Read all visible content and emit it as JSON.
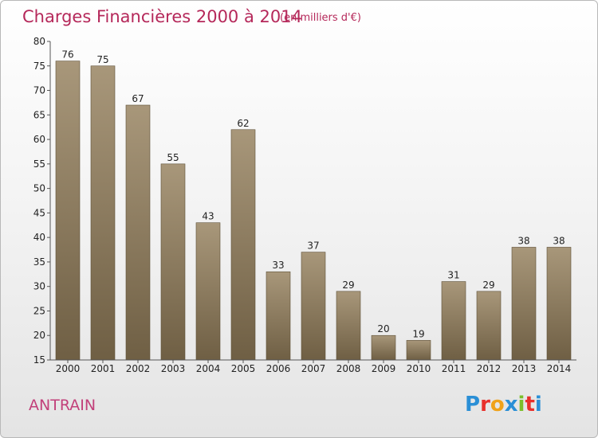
{
  "chart_data": {
    "type": "bar",
    "title": "Charges Financières 2000 à 2014",
    "subtitle": "(en milliers d'€)",
    "categories": [
      "2000",
      "2001",
      "2002",
      "2003",
      "2004",
      "2005",
      "2006",
      "2007",
      "2008",
      "2009",
      "2010",
      "2011",
      "2012",
      "2013",
      "2014"
    ],
    "values": [
      76,
      75,
      67,
      55,
      43,
      62,
      33,
      37,
      29,
      20,
      19,
      31,
      29,
      38,
      38
    ],
    "ylim": [
      15,
      80
    ],
    "yticks": [
      15,
      20,
      25,
      30,
      35,
      40,
      45,
      50,
      55,
      60,
      65,
      70,
      75,
      80
    ],
    "grid": false,
    "bar_color": "#8c7b5e"
  },
  "footer": {
    "commune": "ANTRAIN",
    "logo": {
      "text": "Proxiti",
      "letter_colors": [
        "#2a8fd6",
        "#e8302b",
        "#f0a21a",
        "#2a8fd6",
        "#7bbf2a",
        "#e8302b",
        "#2a8fd6"
      ]
    }
  }
}
